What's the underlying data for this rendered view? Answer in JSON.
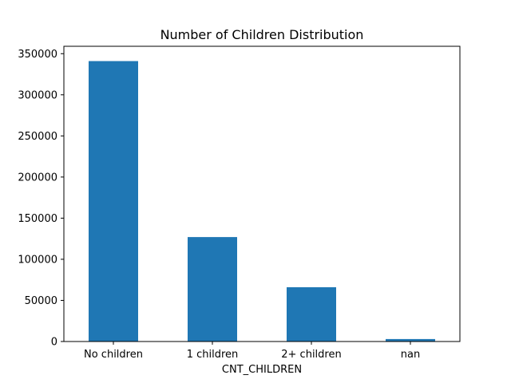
{
  "chart_data": {
    "type": "bar",
    "title": "Number of Children Distribution",
    "xlabel": "CNT_CHILDREN",
    "ylabel": "",
    "categories": [
      "No children",
      "1 children",
      "2+ children",
      "nan"
    ],
    "values": [
      341000,
      127000,
      66000,
      3000
    ],
    "ylim": [
      0,
      359000
    ],
    "yticks": [
      0,
      50000,
      100000,
      150000,
      200000,
      250000,
      300000,
      350000
    ],
    "grid": false,
    "legend": "none",
    "bar_color": "#1f77b4"
  }
}
